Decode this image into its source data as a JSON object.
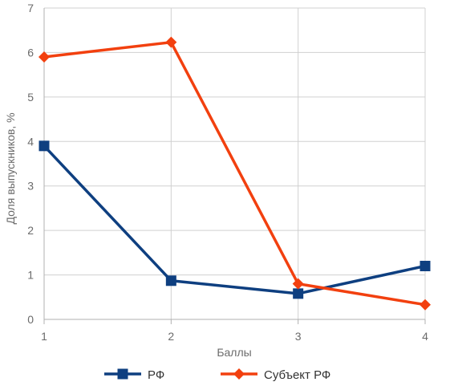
{
  "chart_data": {
    "type": "line",
    "title": "",
    "xlabel": "Баллы",
    "ylabel": "Доля выпускников, %",
    "x": [
      1,
      2,
      3,
      4
    ],
    "x_tick_labels": [
      "1",
      "2",
      "3",
      "4"
    ],
    "ylim": [
      0,
      7
    ],
    "y_ticks": [
      0,
      1,
      2,
      3,
      4,
      5,
      6,
      7
    ],
    "y_tick_labels": [
      "0",
      "1",
      "2",
      "3",
      "4",
      "5",
      "6",
      "7"
    ],
    "grid": true,
    "legend_position": "bottom",
    "series": [
      {
        "name": "РФ",
        "values": [
          3.9,
          0.87,
          0.58,
          1.2
        ],
        "color": "#0e3f80",
        "marker": "square"
      },
      {
        "name": "Субъект РФ",
        "values": [
          5.9,
          6.23,
          0.8,
          0.33
        ],
        "color": "#f2400f",
        "marker": "diamond"
      }
    ]
  }
}
